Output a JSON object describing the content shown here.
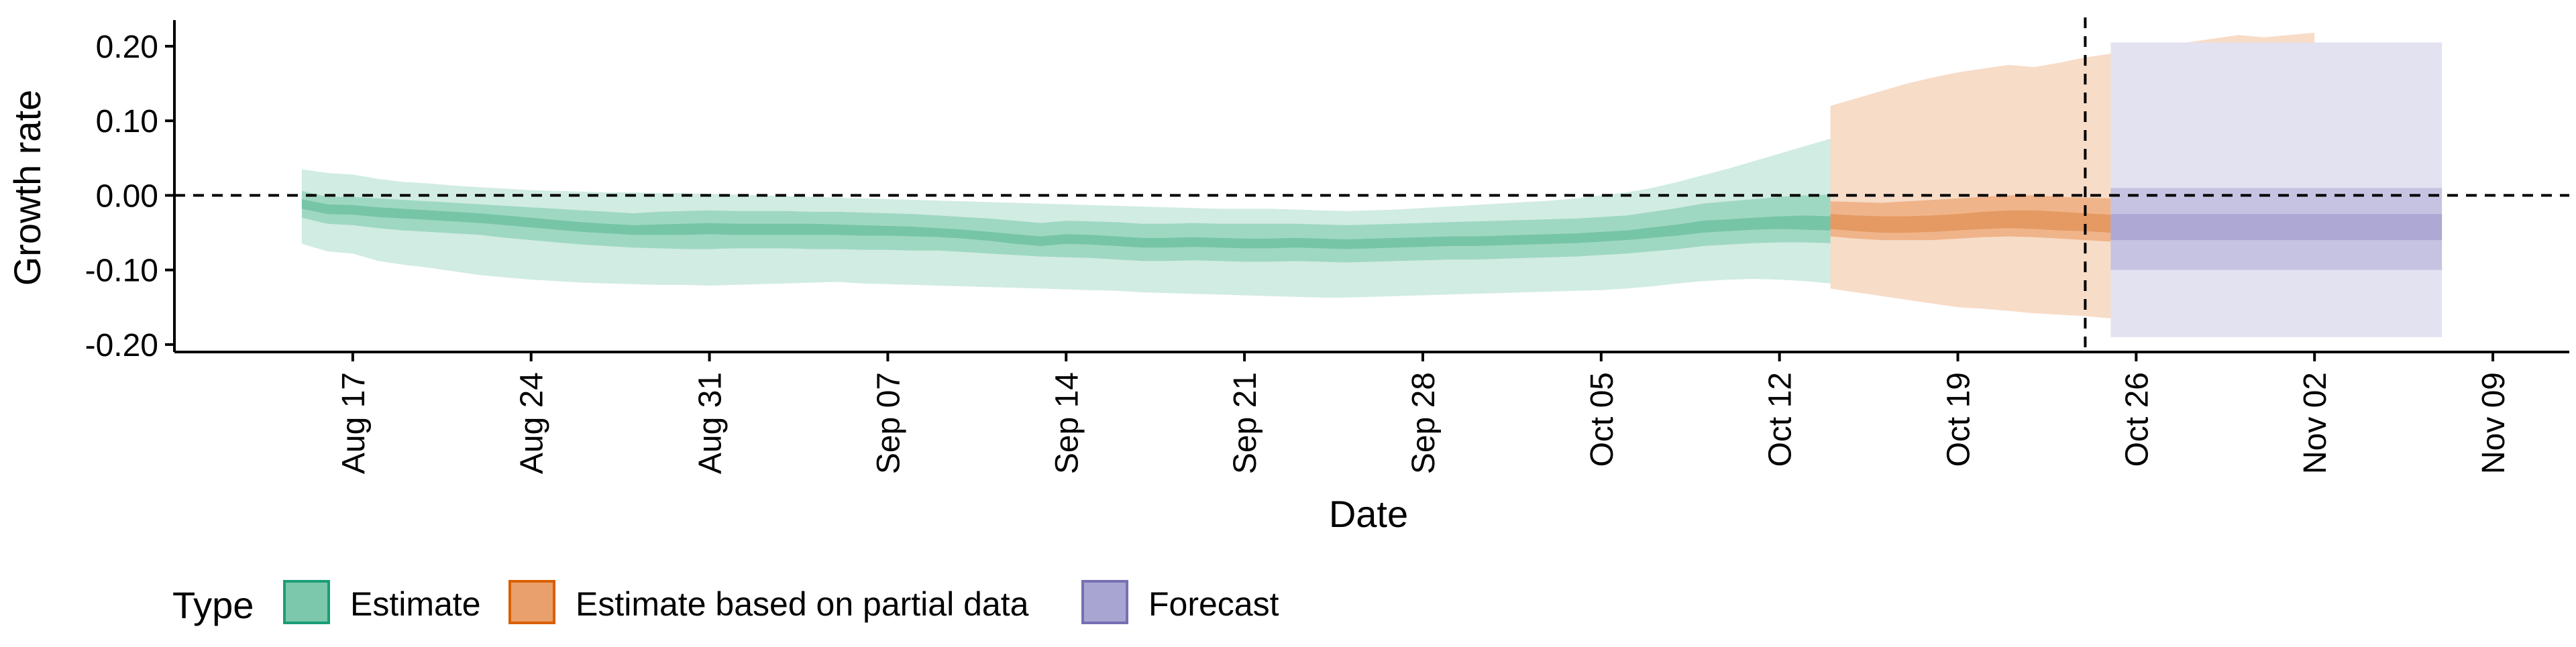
{
  "chart_data": {
    "type": "area",
    "xlabel": "Date",
    "ylabel": "Growth rate",
    "x_axis": {
      "type": "date",
      "range": [
        "2020-08-10",
        "2020-11-12"
      ],
      "ticks": [
        {
          "date": "2020-08-17",
          "label": "Aug 17"
        },
        {
          "date": "2020-08-24",
          "label": "Aug 24"
        },
        {
          "date": "2020-08-31",
          "label": "Aug 31"
        },
        {
          "date": "2020-09-07",
          "label": "Sep 07"
        },
        {
          "date": "2020-09-14",
          "label": "Sep 14"
        },
        {
          "date": "2020-09-21",
          "label": "Sep 21"
        },
        {
          "date": "2020-09-28",
          "label": "Sep 28"
        },
        {
          "date": "2020-10-05",
          "label": "Oct 05"
        },
        {
          "date": "2020-10-12",
          "label": "Oct 12"
        },
        {
          "date": "2020-10-19",
          "label": "Oct 19"
        },
        {
          "date": "2020-10-26",
          "label": "Oct 26"
        },
        {
          "date": "2020-11-02",
          "label": "Nov 02"
        },
        {
          "date": "2020-11-09",
          "label": "Nov 09"
        }
      ]
    },
    "y_axis": {
      "range": [
        -0.21,
        0.235
      ],
      "ticks": [
        {
          "value": 0.2,
          "label": "0.20"
        },
        {
          "value": 0.1,
          "label": "0.10"
        },
        {
          "value": 0.0,
          "label": "0.00"
        },
        {
          "value": -0.1,
          "label": "-0.10"
        },
        {
          "value": -0.2,
          "label": "-0.20"
        }
      ]
    },
    "reference_lines": {
      "horizontal_y": 0.0,
      "vertical_date": "2020-10-24",
      "style": "dashed"
    },
    "legend": {
      "title": "Type",
      "position": "bottom-left",
      "items": [
        {
          "label": "Estimate",
          "fill": "#7cc8ad",
          "stroke": "#1b9e77"
        },
        {
          "label": "Estimate based on partial data",
          "fill": "#e9a06c",
          "stroke": "#d95f02"
        },
        {
          "label": "Forecast",
          "fill": "#a9a5d2",
          "stroke": "#7570b3"
        }
      ]
    },
    "series": [
      {
        "name": "Estimate",
        "colors": {
          "outer": "#d1ece2",
          "mid": "#9fd8c2",
          "inner": "#77c5a7"
        },
        "start_date": "2020-08-15",
        "values_90_low": [
          -0.065,
          -0.075,
          -0.078,
          -0.088,
          -0.093,
          -0.097,
          -0.102,
          -0.107,
          -0.11,
          -0.113,
          -0.115,
          -0.117,
          -0.118,
          -0.119,
          -0.12,
          -0.12,
          -0.121,
          -0.12,
          -0.119,
          -0.118,
          -0.117,
          -0.116,
          -0.118,
          -0.119,
          -0.12,
          -0.121,
          -0.122,
          -0.123,
          -0.124,
          -0.125,
          -0.126,
          -0.127,
          -0.128,
          -0.13,
          -0.131,
          -0.132,
          -0.133,
          -0.134,
          -0.135,
          -0.136,
          -0.137,
          -0.137,
          -0.136,
          -0.135,
          -0.134,
          -0.133,
          -0.132,
          -0.131,
          -0.13,
          -0.129,
          -0.128,
          -0.127,
          -0.125,
          -0.122,
          -0.118,
          -0.115,
          -0.113,
          -0.112,
          -0.113,
          -0.115,
          -0.118,
          -0.12,
          -0.122,
          -0.124,
          -0.125
        ],
        "values_50_low": [
          -0.03,
          -0.038,
          -0.04,
          -0.044,
          -0.047,
          -0.049,
          -0.051,
          -0.053,
          -0.057,
          -0.06,
          -0.063,
          -0.066,
          -0.068,
          -0.07,
          -0.071,
          -0.072,
          -0.072,
          -0.071,
          -0.071,
          -0.071,
          -0.072,
          -0.072,
          -0.073,
          -0.073,
          -0.074,
          -0.074,
          -0.076,
          -0.078,
          -0.08,
          -0.082,
          -0.083,
          -0.084,
          -0.086,
          -0.088,
          -0.088,
          -0.087,
          -0.088,
          -0.089,
          -0.089,
          -0.088,
          -0.089,
          -0.09,
          -0.089,
          -0.088,
          -0.087,
          -0.086,
          -0.086,
          -0.085,
          -0.084,
          -0.083,
          -0.082,
          -0.08,
          -0.078,
          -0.075,
          -0.072,
          -0.068,
          -0.066,
          -0.064,
          -0.063,
          -0.063,
          -0.064,
          -0.065,
          -0.066,
          -0.067,
          -0.068
        ],
        "values_20_low": [
          -0.018,
          -0.025,
          -0.026,
          -0.029,
          -0.031,
          -0.033,
          -0.035,
          -0.037,
          -0.04,
          -0.043,
          -0.046,
          -0.049,
          -0.051,
          -0.053,
          -0.053,
          -0.053,
          -0.052,
          -0.053,
          -0.053,
          -0.053,
          -0.053,
          -0.053,
          -0.054,
          -0.054,
          -0.055,
          -0.056,
          -0.058,
          -0.061,
          -0.065,
          -0.068,
          -0.065,
          -0.066,
          -0.068,
          -0.07,
          -0.07,
          -0.069,
          -0.07,
          -0.071,
          -0.071,
          -0.07,
          -0.071,
          -0.072,
          -0.071,
          -0.07,
          -0.069,
          -0.068,
          -0.068,
          -0.067,
          -0.066,
          -0.065,
          -0.064,
          -0.062,
          -0.06,
          -0.057,
          -0.054,
          -0.05,
          -0.048,
          -0.046,
          -0.045,
          -0.046,
          -0.047,
          -0.048,
          -0.049,
          -0.05,
          -0.051
        ],
        "values_20_high": [
          -0.005,
          -0.012,
          -0.013,
          -0.016,
          -0.018,
          -0.02,
          -0.022,
          -0.024,
          -0.027,
          -0.03,
          -0.033,
          -0.036,
          -0.038,
          -0.04,
          -0.039,
          -0.038,
          -0.037,
          -0.038,
          -0.038,
          -0.038,
          -0.038,
          -0.039,
          -0.04,
          -0.041,
          -0.042,
          -0.044,
          -0.046,
          -0.049,
          -0.052,
          -0.055,
          -0.052,
          -0.053,
          -0.055,
          -0.057,
          -0.057,
          -0.056,
          -0.057,
          -0.058,
          -0.058,
          -0.057,
          -0.058,
          -0.059,
          -0.058,
          -0.057,
          -0.056,
          -0.055,
          -0.055,
          -0.054,
          -0.053,
          -0.052,
          -0.051,
          -0.049,
          -0.047,
          -0.043,
          -0.039,
          -0.034,
          -0.032,
          -0.03,
          -0.028,
          -0.027,
          -0.028,
          -0.029,
          -0.03,
          -0.031,
          -0.032
        ],
        "values_50_high": [
          0.006,
          -0.002,
          -0.002,
          -0.004,
          -0.006,
          -0.008,
          -0.01,
          -0.012,
          -0.014,
          -0.016,
          -0.018,
          -0.02,
          -0.022,
          -0.024,
          -0.022,
          -0.021,
          -0.02,
          -0.021,
          -0.021,
          -0.021,
          -0.022,
          -0.022,
          -0.023,
          -0.024,
          -0.025,
          -0.027,
          -0.029,
          -0.031,
          -0.034,
          -0.037,
          -0.034,
          -0.035,
          -0.036,
          -0.038,
          -0.038,
          -0.037,
          -0.038,
          -0.038,
          -0.038,
          -0.038,
          -0.039,
          -0.04,
          -0.039,
          -0.038,
          -0.037,
          -0.036,
          -0.035,
          -0.034,
          -0.033,
          -0.032,
          -0.031,
          -0.029,
          -0.027,
          -0.022,
          -0.017,
          -0.011,
          -0.008,
          -0.005,
          -0.002,
          0.0,
          0.001,
          0.002,
          0.003,
          0.004,
          0.005
        ],
        "values_90_high": [
          0.035,
          0.03,
          0.028,
          0.022,
          0.018,
          0.016,
          0.013,
          0.011,
          0.009,
          0.007,
          0.006,
          0.005,
          0.004,
          0.004,
          0.003,
          0.003,
          0.002,
          0.001,
          0.0,
          -0.001,
          -0.002,
          -0.003,
          -0.004,
          -0.005,
          -0.006,
          -0.007,
          -0.008,
          -0.009,
          -0.01,
          -0.011,
          -0.012,
          -0.013,
          -0.014,
          -0.015,
          -0.016,
          -0.017,
          -0.018,
          -0.018,
          -0.018,
          -0.019,
          -0.02,
          -0.021,
          -0.02,
          -0.019,
          -0.017,
          -0.015,
          -0.013,
          -0.011,
          -0.009,
          -0.007,
          -0.004,
          0.0,
          0.004,
          0.01,
          0.018,
          0.027,
          0.036,
          0.046,
          0.056,
          0.066,
          0.076,
          0.086,
          0.095,
          0.102,
          0.108
        ]
      },
      {
        "name": "Estimate based on partial data",
        "colors": {
          "outer": "#f7dcc8",
          "mid": "#f0b48a",
          "inner": "#e49a62"
        },
        "start_date": "2020-10-14",
        "values_90_low": [
          -0.125,
          -0.13,
          -0.135,
          -0.14,
          -0.145,
          -0.15,
          -0.152,
          -0.155,
          -0.158,
          -0.16,
          -0.162,
          -0.165,
          -0.168,
          -0.17,
          -0.172,
          -0.17,
          -0.165,
          -0.175,
          -0.18,
          -0.19
        ],
        "values_50_low": [
          -0.055,
          -0.058,
          -0.06,
          -0.06,
          -0.06,
          -0.058,
          -0.056,
          -0.055,
          -0.056,
          -0.058,
          -0.06,
          -0.062,
          -0.065,
          -0.068,
          -0.07,
          -0.068,
          -0.066,
          -0.07,
          -0.072,
          -0.075
        ],
        "values_20_low": [
          -0.045,
          -0.048,
          -0.05,
          -0.05,
          -0.049,
          -0.047,
          -0.045,
          -0.044,
          -0.045,
          -0.047,
          -0.048,
          -0.05,
          -0.052,
          -0.054,
          -0.055,
          -0.054,
          -0.052,
          -0.056,
          -0.058,
          -0.06
        ],
        "values_20_high": [
          -0.025,
          -0.027,
          -0.028,
          -0.028,
          -0.027,
          -0.025,
          -0.022,
          -0.02,
          -0.02,
          -0.022,
          -0.024,
          -0.026,
          -0.028,
          -0.03,
          -0.032,
          -0.03,
          -0.028,
          -0.032,
          -0.034,
          -0.036
        ],
        "values_50_high": [
          -0.008,
          -0.009,
          -0.01,
          -0.008,
          -0.006,
          -0.004,
          -0.002,
          0.0,
          0.0,
          -0.002,
          -0.003,
          -0.004,
          -0.005,
          -0.006,
          -0.005,
          -0.003,
          -0.002,
          -0.004,
          -0.006,
          -0.008
        ],
        "values_90_high": [
          0.12,
          0.13,
          0.14,
          0.15,
          0.158,
          0.165,
          0.17,
          0.175,
          0.172,
          0.178,
          0.185,
          0.19,
          0.195,
          0.2,
          0.205,
          0.21,
          0.215,
          0.212,
          0.215,
          0.218
        ]
      },
      {
        "name": "Forecast",
        "colors": {
          "outer": "#e3e2f1",
          "mid": "#c6c3e2",
          "inner": "#ada9d4"
        },
        "start_date": "2020-10-25",
        "end_date": "2020-11-07",
        "band_90": [
          -0.19,
          0.205
        ],
        "band_50": [
          -0.1,
          0.01
        ],
        "band_20": [
          -0.06,
          -0.025
        ]
      }
    ]
  }
}
